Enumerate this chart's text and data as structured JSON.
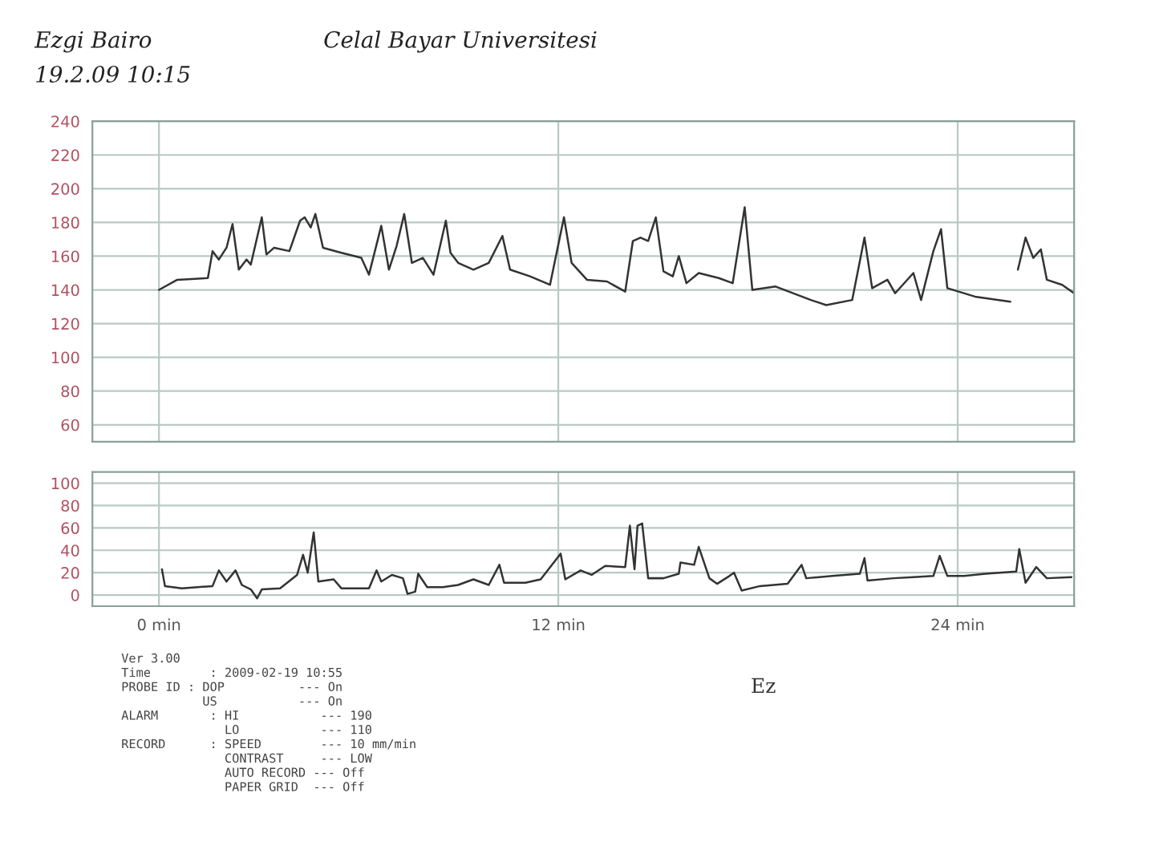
{
  "chart_data": [
    {
      "type": "line",
      "annotations": [
        "Ezgi Bairo",
        "19.2.09 10:15",
        "Celal Bayar Universitesi"
      ],
      "xlim": [
        -2,
        27.5
      ],
      "ylim": [
        50,
        240
      ],
      "yticks": [
        60,
        80,
        100,
        120,
        140,
        160,
        180,
        200,
        220,
        240
      ],
      "xticks": [
        0,
        12,
        24
      ],
      "tick_labels": "y",
      "grid": true,
      "series": [
        {
          "color": "#333333",
          "x": [
            0,
            0.55,
            1.47,
            1.61,
            1.8,
            2.03,
            2.21,
            2.4,
            2.63,
            2.76,
            3.09,
            3.23,
            3.46,
            3.92,
            4.24,
            4.38,
            4.56,
            4.7,
            4.93,
            5.48,
            6.08,
            6.31,
            6.68,
            6.91,
            7.14,
            7.37,
            7.6,
            7.93,
            8.25,
            8.62,
            8.76,
            8.99,
            9.45,
            9.91,
            10.32,
            10.55,
            11.15,
            11.75,
            12.17,
            12.4,
            12.86,
            13.46,
            14.01,
            14.24,
            14.47,
            14.7,
            14.93,
            15.16,
            15.44,
            15.62,
            15.85,
            16.22,
            16.82,
            17.24,
            17.6,
            17.83,
            18.53,
            19.59,
            20.05,
            20.83,
            21.2,
            21.43,
            21.89,
            22.12,
            22.67,
            22.9,
            23.27,
            23.5,
            23.69,
            24.52,
            25.58,
            25.7,
            25.81,
            26.04,
            26.27,
            26.5,
            26.68,
            27.14,
            27.5
          ],
          "values": [
            140,
            146,
            147,
            163,
            158,
            165,
            179,
            152,
            158,
            155,
            183,
            161,
            165,
            163,
            181,
            183,
            177,
            185,
            165,
            162,
            159,
            149,
            178,
            152,
            166,
            185,
            156,
            159,
            149,
            181,
            162,
            156,
            152,
            156,
            172,
            152,
            148,
            143,
            183,
            156,
            146,
            145,
            139,
            169,
            171,
            169,
            183,
            151,
            148,
            160,
            144,
            150,
            147,
            144,
            189,
            140,
            142,
            134,
            131,
            134,
            171,
            141,
            146,
            138,
            150,
            134,
            163,
            176,
            141,
            136,
            133,
            null,
            152,
            171,
            159,
            164,
            146,
            143,
            138
          ]
        }
      ]
    },
    {
      "type": "line",
      "annotations": [
        "Ver 3.00",
        "Time        : 2009-02-19 10:55",
        "PROBE ID : DOP          --- On",
        "           US           --- On",
        "ALARM       : HI           --- 190",
        "              LO           --- 110",
        "RECORD      : SPEED        --- 10 mm/min",
        "              CONTRAST     --- LOW",
        "              AUTO RECORD --- Off",
        "              PAPER GRID  --- Off",
        "Ez"
      ],
      "xlim": [
        -2,
        27.5
      ],
      "ylim": [
        -10,
        110
      ],
      "yticks": [
        0,
        20,
        40,
        60,
        80,
        100
      ],
      "xticks": [
        {
          "value": 0,
          "label": "0 min"
        },
        {
          "value": 12,
          "label": "12 min"
        },
        {
          "value": 24,
          "label": "24 min"
        }
      ],
      "grid": true,
      "series": [
        {
          "color": "#333333",
          "x": [
            0.09,
            0.18,
            0.69,
            1.61,
            1.8,
            2.03,
            2.3,
            2.49,
            2.76,
            2.95,
            3.09,
            3.64,
            4.15,
            4.33,
            4.47,
            4.65,
            4.79,
            5.25,
            5.48,
            6.31,
            6.54,
            6.68,
            7.0,
            7.33,
            7.47,
            7.7,
            7.79,
            8.06,
            8.53,
            8.99,
            9.45,
            9.91,
            10.23,
            10.37,
            11.01,
            11.47,
            12.07,
            12.21,
            12.67,
            13.0,
            13.41,
            14.01,
            14.15,
            14.29,
            14.38,
            14.52,
            14.7,
            15.16,
            15.62,
            15.67,
            16.08,
            16.22,
            16.54,
            16.77,
            17.14,
            17.28,
            17.51,
            18.06,
            18.89,
            19.31,
            19.45,
            20.23,
            21.06,
            21.2,
            21.29,
            22.07,
            22.67,
            23.27,
            23.46,
            23.69,
            24.19,
            24.84,
            25.76,
            25.85,
            26.04,
            26.36,
            26.68,
            27.42
          ],
          "values": [
            23,
            8,
            6,
            8,
            22,
            12,
            22,
            9,
            5,
            -3,
            5,
            6,
            18,
            36,
            20,
            56,
            12,
            14,
            6,
            6,
            22,
            12,
            18,
            15,
            1,
            3,
            19,
            7,
            7,
            9,
            14,
            9,
            27,
            11,
            11,
            14,
            37,
            14,
            22,
            18,
            26,
            25,
            62,
            23,
            62,
            64,
            15,
            15,
            19,
            29,
            27,
            43,
            15,
            10,
            17,
            20,
            4,
            8,
            10,
            27,
            15,
            17,
            19,
            33,
            13,
            15,
            16,
            17,
            35,
            17,
            17,
            19,
            21,
            41,
            11,
            25,
            15,
            16
          ]
        }
      ]
    }
  ]
}
